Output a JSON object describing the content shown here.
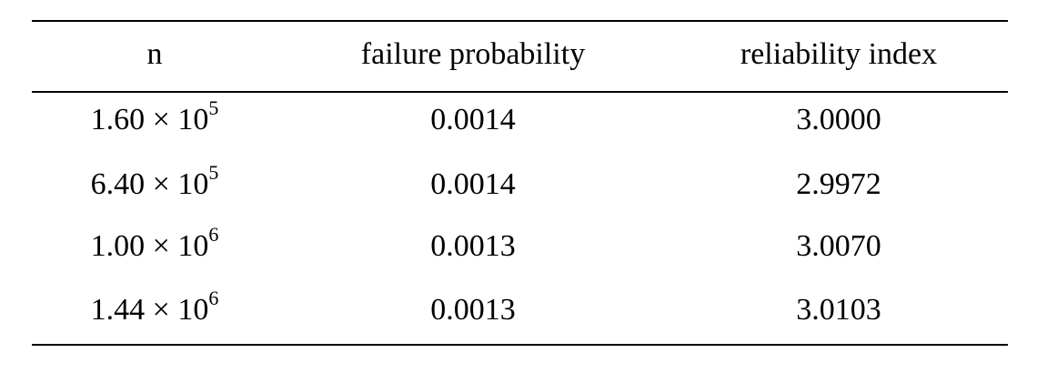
{
  "table": {
    "header": [
      "n",
      "failure probability",
      "reliability index"
    ],
    "rows": [
      [
        {
          "base": "1.60 × 10",
          "exponent": "5"
        },
        "0.0014",
        "3.0000"
      ],
      [
        {
          "base": "6.40 × 10",
          "exponent": "5"
        },
        "0.0014",
        "2.9972"
      ],
      [
        {
          "base": "1.00 × 10",
          "exponent": "6"
        },
        "0.0013",
        "3.0070"
      ],
      [
        {
          "base": "1.44 × 10",
          "exponent": "6"
        },
        "0.0013",
        "3.0103"
      ]
    ]
  }
}
